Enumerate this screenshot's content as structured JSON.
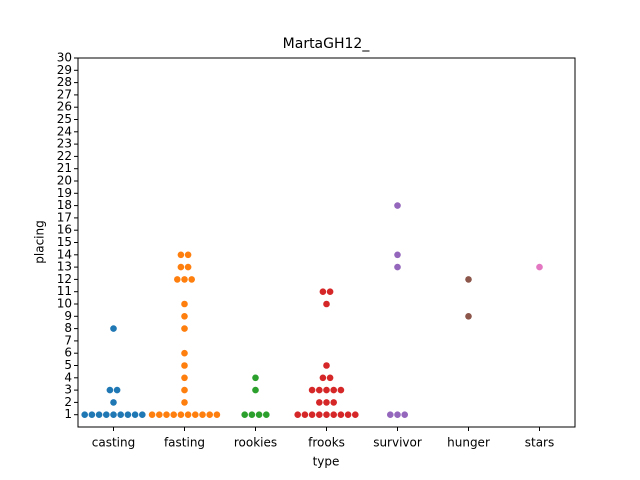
{
  "chart_data": {
    "type": "swarm",
    "title": "MartaGH12_",
    "x_label": "type",
    "y_label": "placing",
    "categories": [
      "casting",
      "fasting",
      "rookies",
      "frooks",
      "survivor",
      "hunger",
      "stars"
    ],
    "colors": [
      "#1f77b4",
      "#ff7f0e",
      "#2ca02c",
      "#d62728",
      "#9467bd",
      "#8c564b",
      "#e377c2"
    ],
    "values": [
      [
        1,
        1,
        1,
        1,
        1,
        1,
        1,
        1,
        1,
        2,
        3,
        3,
        8
      ],
      [
        1,
        1,
        1,
        1,
        1,
        1,
        1,
        1,
        1,
        1,
        2,
        3,
        4,
        5,
        6,
        8,
        9,
        10,
        12,
        12,
        12,
        13,
        13,
        14,
        14
      ],
      [
        1,
        1,
        1,
        1,
        3,
        4
      ],
      [
        1,
        1,
        1,
        1,
        1,
        1,
        1,
        1,
        1,
        2,
        2,
        2,
        3,
        3,
        3,
        3,
        3,
        4,
        4,
        5,
        10,
        11,
        11
      ],
      [
        1,
        1,
        1,
        13,
        14,
        18
      ],
      [
        9,
        12
      ],
      [
        13
      ]
    ],
    "ylim": [
      0,
      30
    ],
    "yticks": [
      1,
      2,
      3,
      4,
      5,
      6,
      7,
      8,
      9,
      10,
      11,
      12,
      13,
      14,
      15,
      16,
      17,
      18,
      19,
      20,
      21,
      22,
      23,
      24,
      25,
      26,
      27,
      28,
      29,
      30
    ]
  }
}
